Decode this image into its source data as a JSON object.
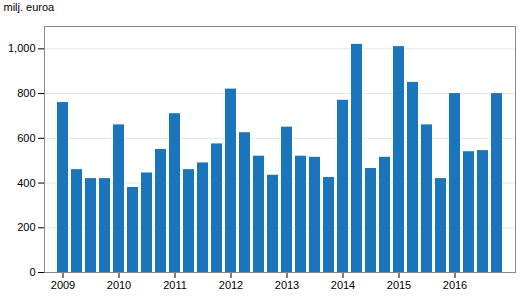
{
  "chart_data": {
    "type": "bar",
    "ylabel": "milj. euroa",
    "categories": [
      "2009",
      null,
      null,
      null,
      "2010",
      null,
      null,
      null,
      "2011",
      null,
      null,
      null,
      "2012",
      null,
      null,
      null,
      "2013",
      null,
      null,
      null,
      "2014",
      null,
      null,
      null,
      "2015",
      null,
      null,
      null,
      "2016",
      null,
      null,
      null
    ],
    "values": [
      760,
      460,
      420,
      420,
      660,
      380,
      445,
      550,
      710,
      460,
      490,
      575,
      820,
      625,
      520,
      435,
      650,
      520,
      515,
      425,
      770,
      1020,
      465,
      515,
      1010,
      850,
      660,
      420,
      800,
      540,
      545,
      800
    ],
    "color": "#1b75bb",
    "ylim": [
      0,
      1100
    ],
    "yticks": [
      0,
      200,
      400,
      600,
      800,
      1000
    ],
    "grid": true
  }
}
